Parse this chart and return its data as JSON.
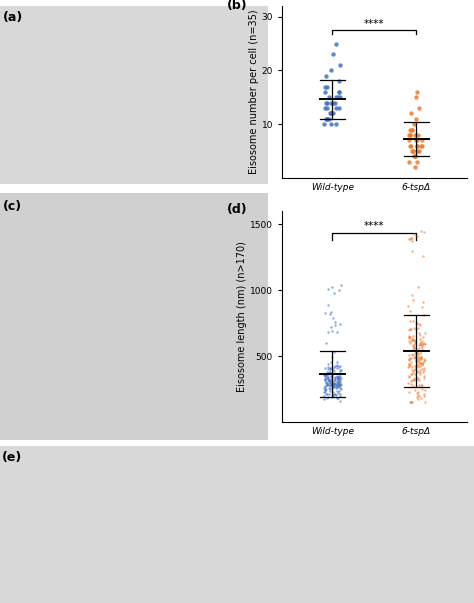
{
  "panel_b": {
    "title": "(b)",
    "ylabel": "Eisosome number per cell (n=35)",
    "xlabels": [
      "Wild-type",
      "6-tspΔ"
    ],
    "ylim": [
      0,
      32
    ],
    "yticks": [
      10,
      20,
      30
    ],
    "wt_color": "#4472C4",
    "tsp_color": "#ED7D31",
    "sig_text": "****",
    "wt_points": [
      10,
      10,
      10,
      11,
      11,
      11,
      11,
      12,
      12,
      12,
      12,
      13,
      13,
      13,
      13,
      14,
      14,
      14,
      14,
      14,
      15,
      15,
      15,
      15,
      16,
      16,
      16,
      17,
      17,
      18,
      19,
      20,
      21,
      23,
      25
    ],
    "tsp_points": [
      2,
      3,
      3,
      4,
      4,
      4,
      5,
      5,
      5,
      5,
      5,
      6,
      6,
      6,
      6,
      6,
      6,
      7,
      7,
      7,
      7,
      8,
      8,
      8,
      8,
      8,
      9,
      9,
      9,
      10,
      11,
      12,
      13,
      15,
      16
    ]
  },
  "panel_d": {
    "title": "(d)",
    "ylabel": "Eisosome length (nm) (n>170)",
    "xlabels": [
      "Wild-type",
      "6-tspΔ"
    ],
    "ylim": [
      0,
      1600
    ],
    "yticks": [
      500,
      1000,
      1500
    ],
    "wt_color": "#4472C4",
    "tsp_color": "#ED7D31",
    "sig_text": "****",
    "wt_mean": 310,
    "wt_std": 80,
    "tsp_mean": 480,
    "tsp_std": 195
  },
  "panel_a_label": "(a)",
  "panel_c_label": "(c)",
  "panel_e_label": "(e)",
  "background_color": "#ffffff",
  "label_fontsize": 7,
  "tick_fontsize": 6.5,
  "panel_label_fontsize": 9,
  "sig_fontsize": 7.5
}
